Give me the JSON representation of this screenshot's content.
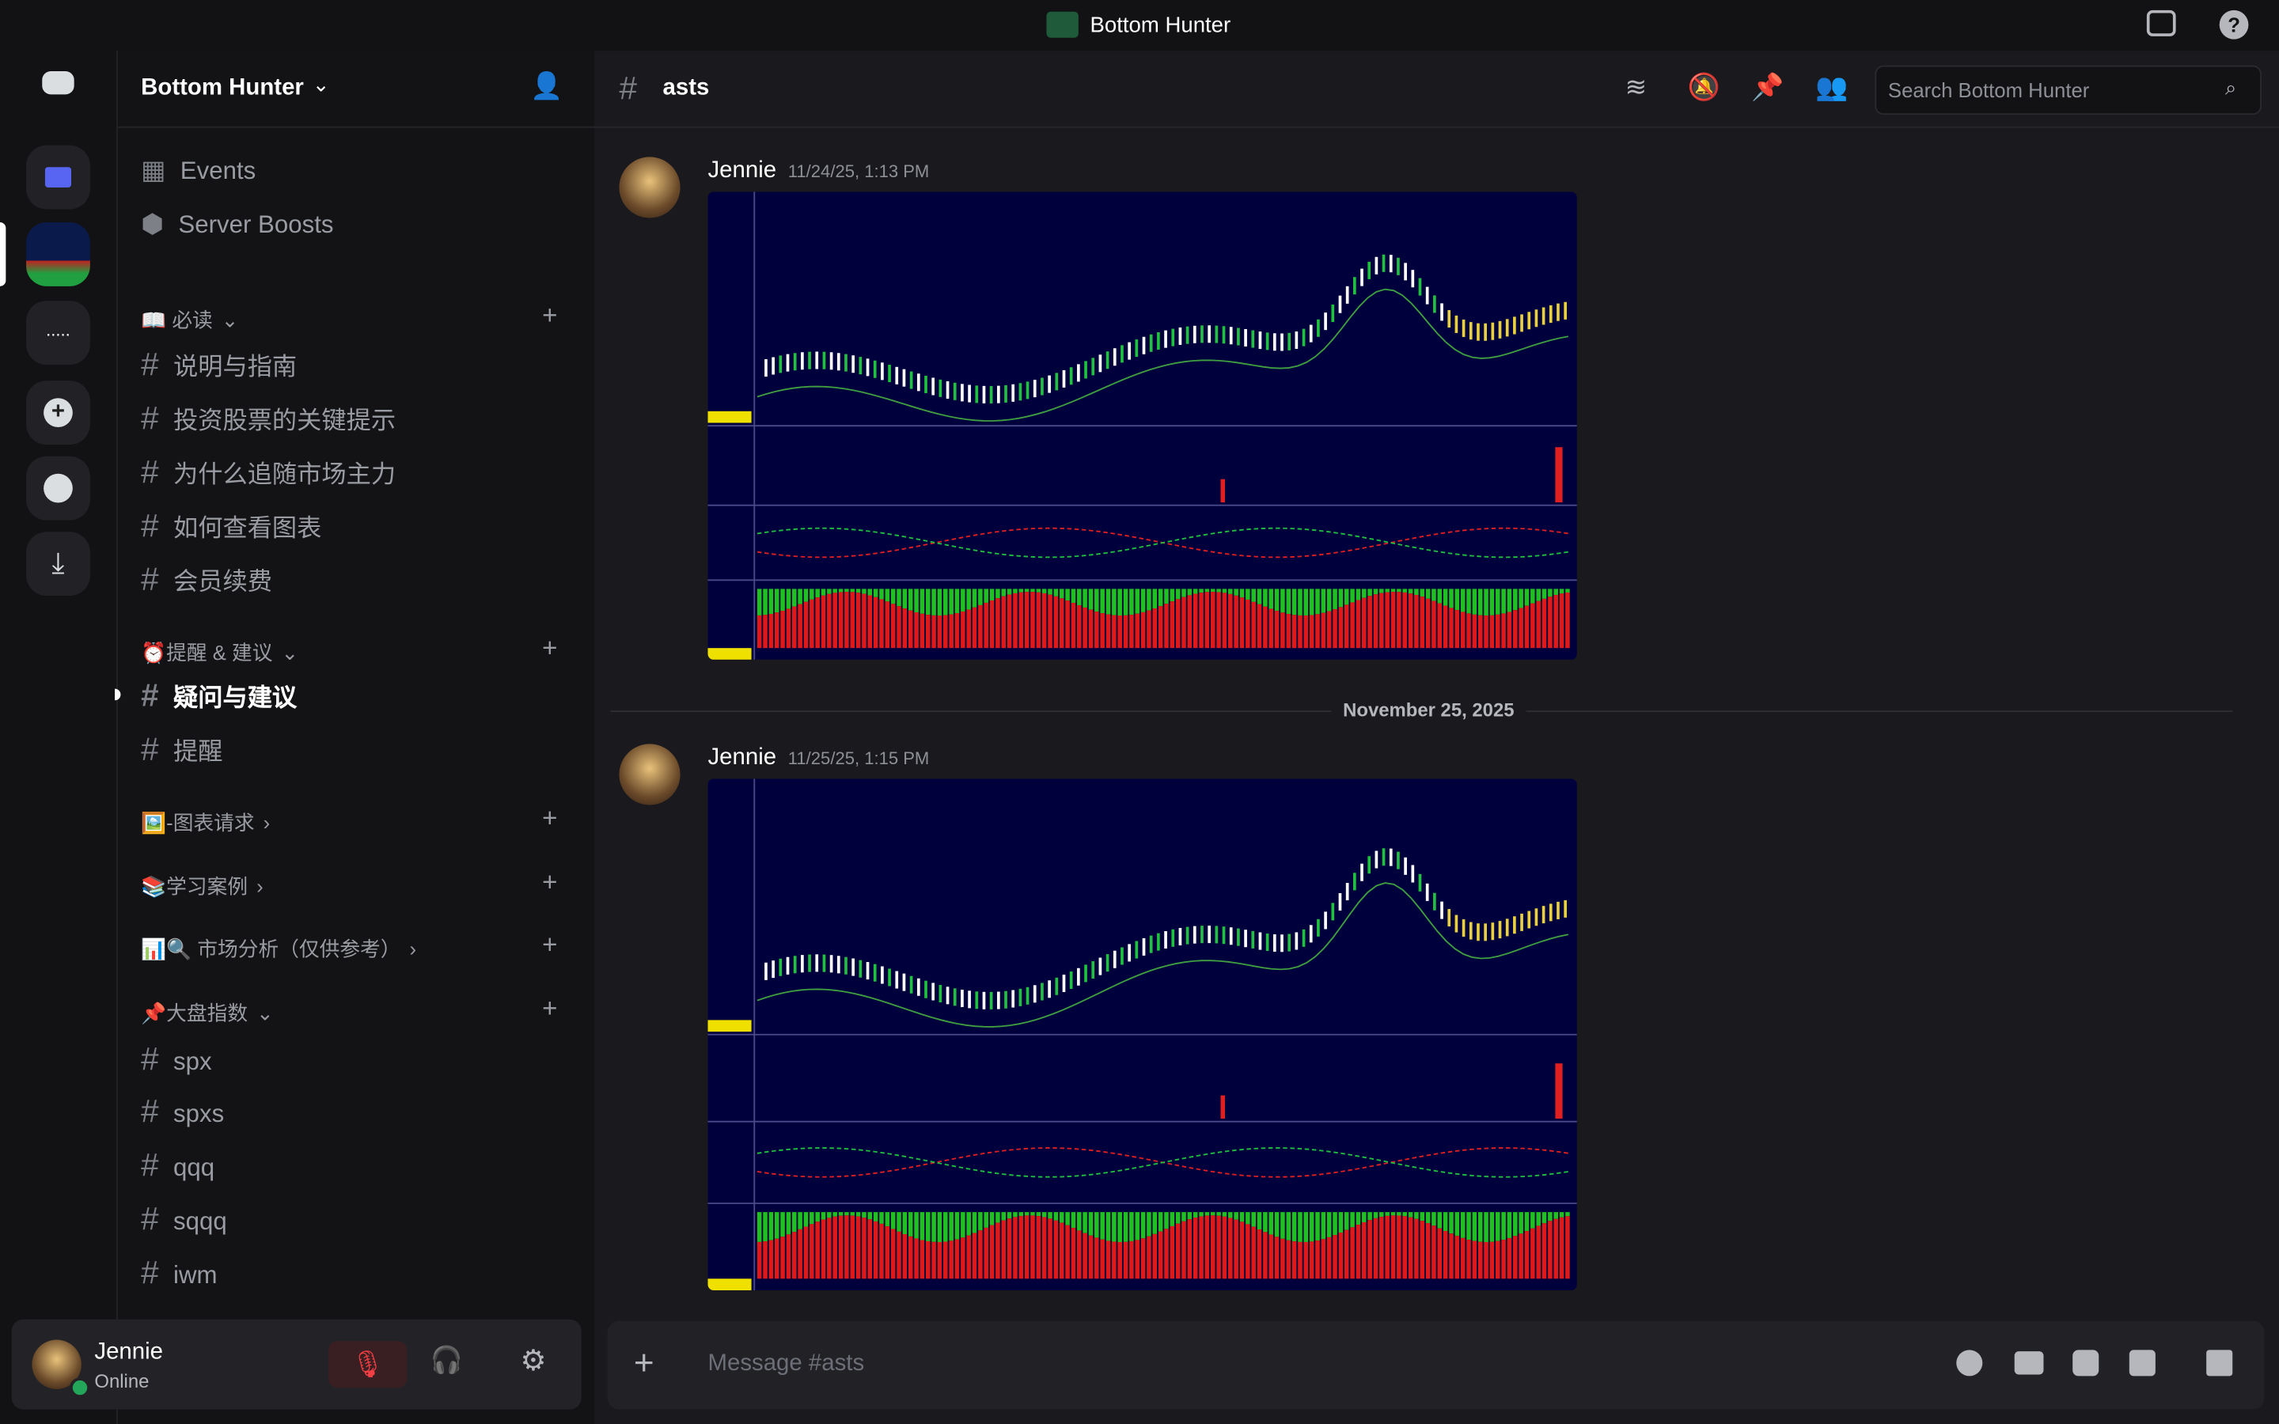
{
  "window_title": "Bottom Hunter",
  "server_name": "Bottom Hunter",
  "server_links": [
    "Events",
    "Server Boosts"
  ],
  "categories": [
    {
      "name": "📖 必读",
      "channels": [
        "说明与指南",
        "投资股票的关键提示",
        "为什么追随市场主力",
        "如何查看图表",
        "会员续费"
      ]
    },
    {
      "name": "⏰提醒 & 建议",
      "channels": [
        "疑问与建议",
        "提醒"
      ]
    },
    {
      "name": "🖼️-图表请求",
      "channels": []
    },
    {
      "name": "📚学习案例",
      "channels": []
    },
    {
      "name": "📊🔍 市场分析（仅供参考）",
      "channels": []
    },
    {
      "name": "📌大盘指数",
      "channels": [
        "spx",
        "spxs",
        "qqq",
        "sqqq",
        "iwm"
      ]
    }
  ],
  "active_channel": "疑问与建议",
  "channel_name": "asts",
  "search_placeholder": "Search Bottom Hunter",
  "messages": [
    {
      "author": "Jennie",
      "time": "11/24/25, 1:13 PM"
    },
    {
      "author": "Jennie",
      "time": "11/25/25, 1:15 PM"
    }
  ],
  "date_divider": "November 25, 2025",
  "user": {
    "name": "Jennie",
    "status": "Online"
  },
  "composer_placeholder": "Message #asts"
}
